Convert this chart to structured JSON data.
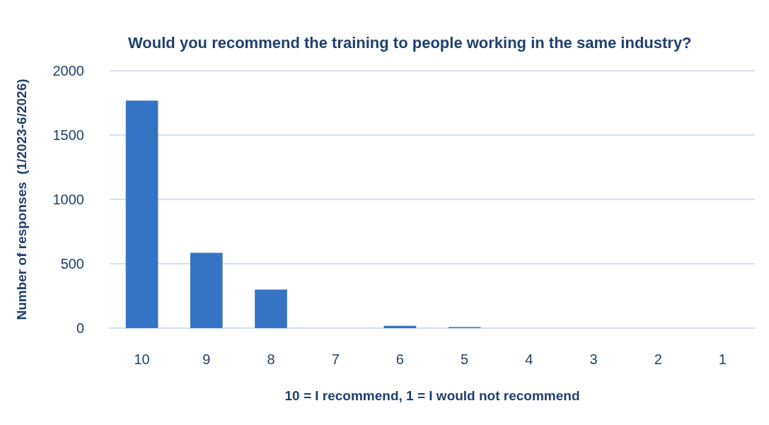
{
  "chart_data": {
    "type": "bar",
    "title": "Would you recommend the training to people working in the same industry?",
    "xlabel": "10 = I recommend, 1 = I would not recommend",
    "ylabel": "Number of responses  (1/2023-6/2026)",
    "categories": [
      "10",
      "9",
      "8",
      "7",
      "6",
      "5",
      "4",
      "3",
      "2",
      "1"
    ],
    "values": [
      1768,
      585,
      300,
      0,
      18,
      8,
      0,
      0,
      0,
      0
    ],
    "color": "#3573c4",
    "ylim": [
      0,
      2000
    ],
    "yticks": [
      0,
      500,
      1000,
      1500,
      2000
    ],
    "grid": "y"
  }
}
